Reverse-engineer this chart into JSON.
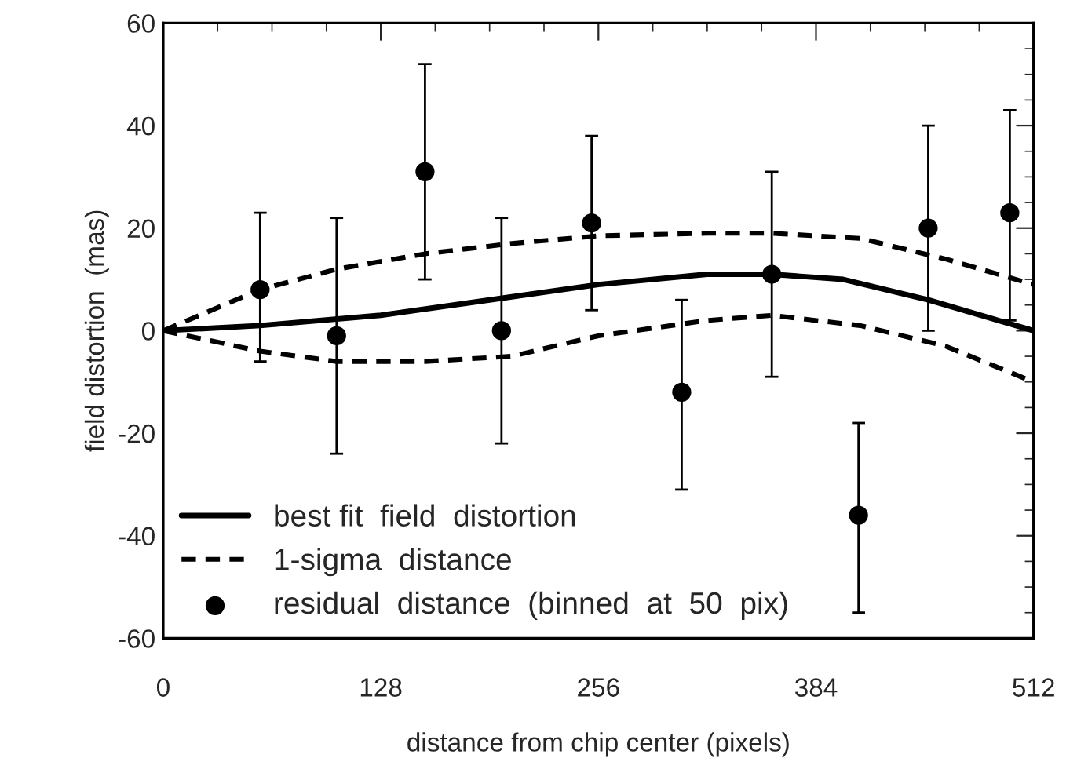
{
  "chart_data": {
    "type": "line",
    "xlabel": "distance from chip center (pixels)",
    "ylabel": "field distortion  (mas)",
    "xlim": [
      0,
      512
    ],
    "xticks": [
      0,
      128,
      256,
      384,
      512
    ],
    "ylim": [
      -60,
      60
    ],
    "yticks": [
      -60,
      -40,
      -20,
      0,
      20,
      40,
      60
    ],
    "legend": "bottom left",
    "grid": false,
    "series": [
      {
        "name": "best fit  field  distortion",
        "color": "#000000",
        "line_style": "solid",
        "x": [
          0,
          57,
          128,
          192,
          256,
          320,
          358,
          400,
          450,
          512
        ],
        "values": [
          0,
          1,
          3,
          6,
          9,
          11,
          11,
          10,
          6,
          0
        ]
      },
      {
        "name": "1-sigma  distance",
        "color": "#000000",
        "line_style": "dashed",
        "x": [
          0,
          57,
          102,
          154,
          205,
          256,
          320,
          358,
          410,
          460,
          512
        ],
        "values": [
          0,
          8,
          12,
          15,
          17,
          18.5,
          19,
          19,
          18,
          14,
          9
        ]
      },
      {
        "color": "#000000",
        "line_style": "dashed",
        "x": [
          0,
          57,
          102,
          154,
          205,
          256,
          320,
          358,
          410,
          460,
          512
        ],
        "values": [
          0,
          -4,
          -6,
          -6,
          -5,
          -1,
          2,
          3,
          1,
          -3,
          -10
        ]
      },
      {
        "name": "residual  distance  (binned  at  50  pix)",
        "type": "scatter",
        "color": "#000000",
        "marker": "circle",
        "x": [
          57,
          102,
          154,
          199,
          252,
          305,
          358,
          409,
          450,
          498
        ],
        "values": [
          8,
          -1,
          31,
          0,
          21,
          -12,
          11,
          -36,
          20,
          23
        ],
        "errors": [
          [
            -6,
            23
          ],
          [
            -24,
            22
          ],
          [
            10,
            52
          ],
          [
            -22,
            22
          ],
          [
            4,
            38
          ],
          [
            -31,
            6
          ],
          [
            -9,
            31
          ],
          [
            -55,
            -18
          ],
          [
            0,
            40
          ],
          [
            2,
            43
          ]
        ]
      }
    ]
  }
}
